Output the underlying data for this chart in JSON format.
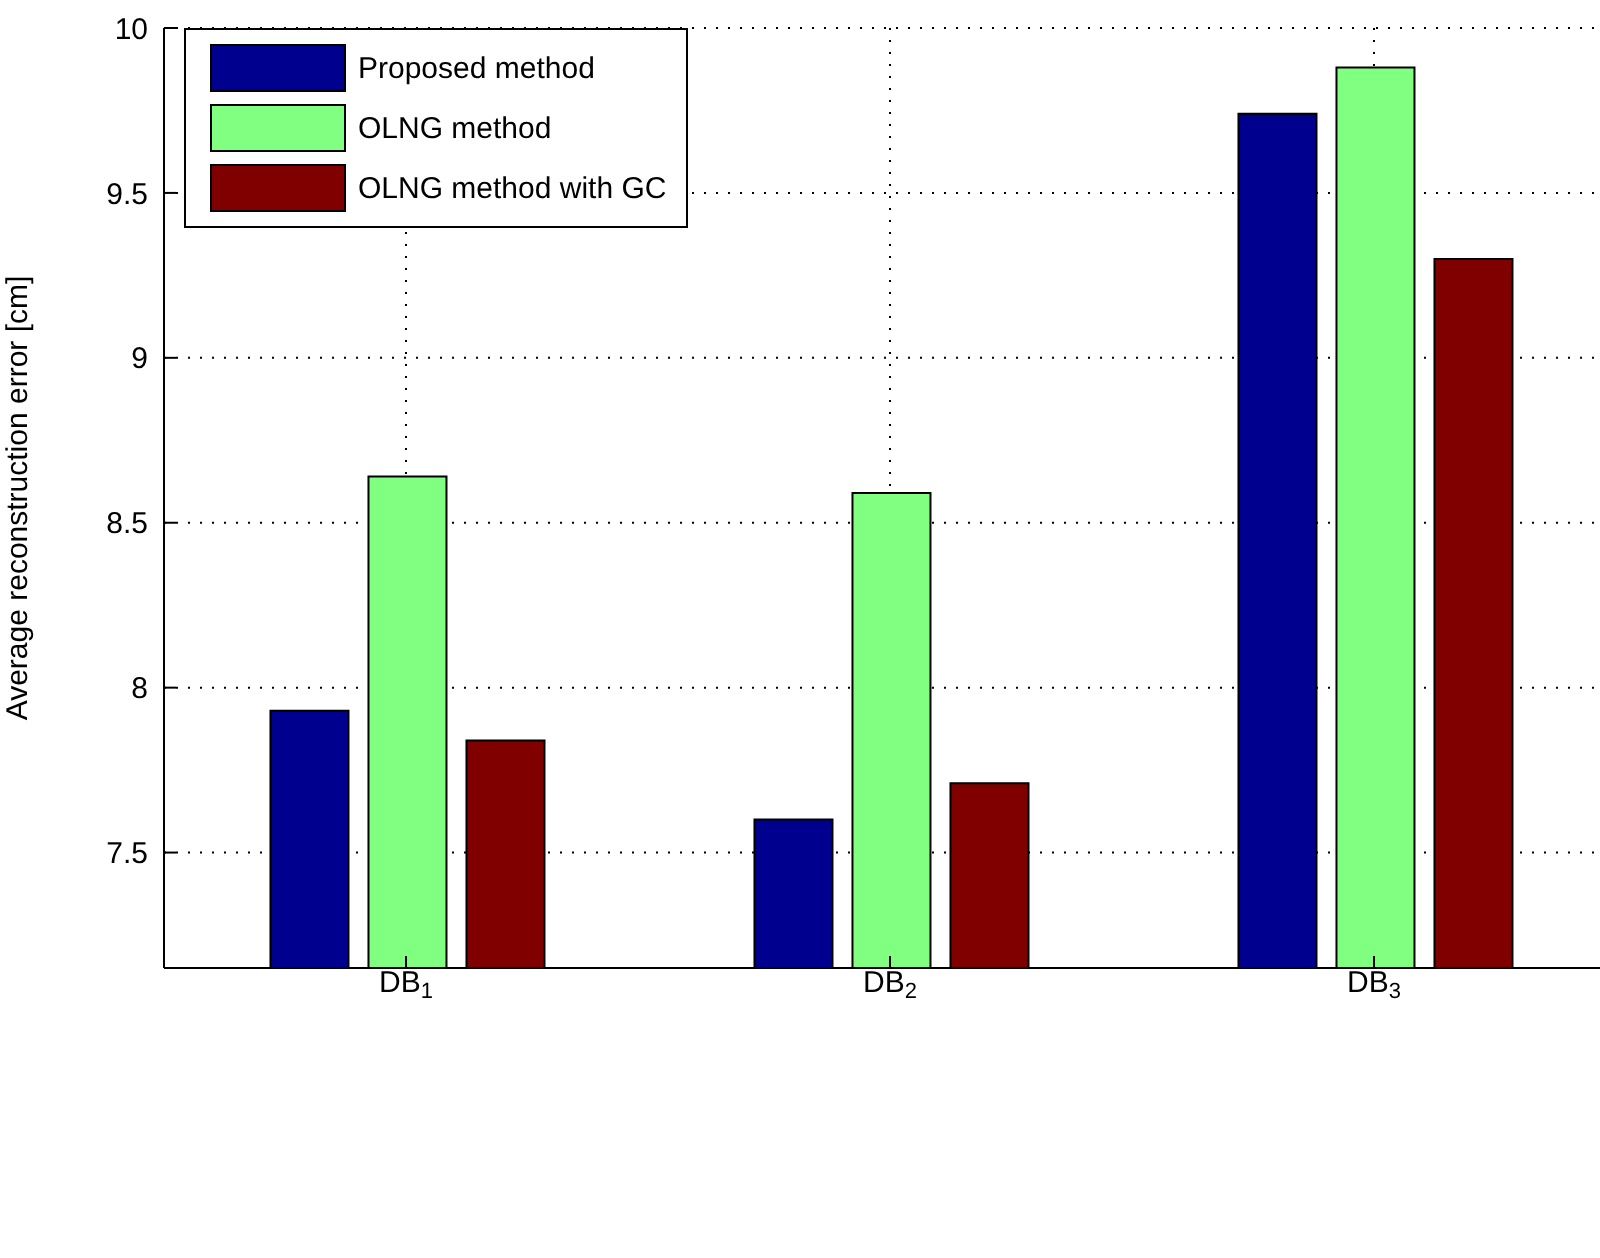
{
  "chart_data": {
    "type": "bar",
    "ylabel": "Average reconstruction error [cm]",
    "categories": [
      "DB$_{1}$",
      "DB$_{2}$",
      "DB$_{3}$"
    ],
    "series": [
      {
        "name": "Proposed method",
        "color": "#00008f",
        "values": [
          7.93,
          7.6,
          9.74
        ]
      },
      {
        "name": "OLNG method",
        "color": "#80ff80",
        "values": [
          8.64,
          8.59,
          9.88
        ]
      },
      {
        "name": "OLNG method with GC",
        "color": "#800000",
        "values": [
          7.84,
          7.71,
          9.3
        ]
      }
    ],
    "ylim": [
      7.15,
      10
    ],
    "yticks": [
      7.5,
      8,
      8.5,
      9,
      9.5,
      10
    ],
    "grid": true,
    "legend": "top left"
  }
}
